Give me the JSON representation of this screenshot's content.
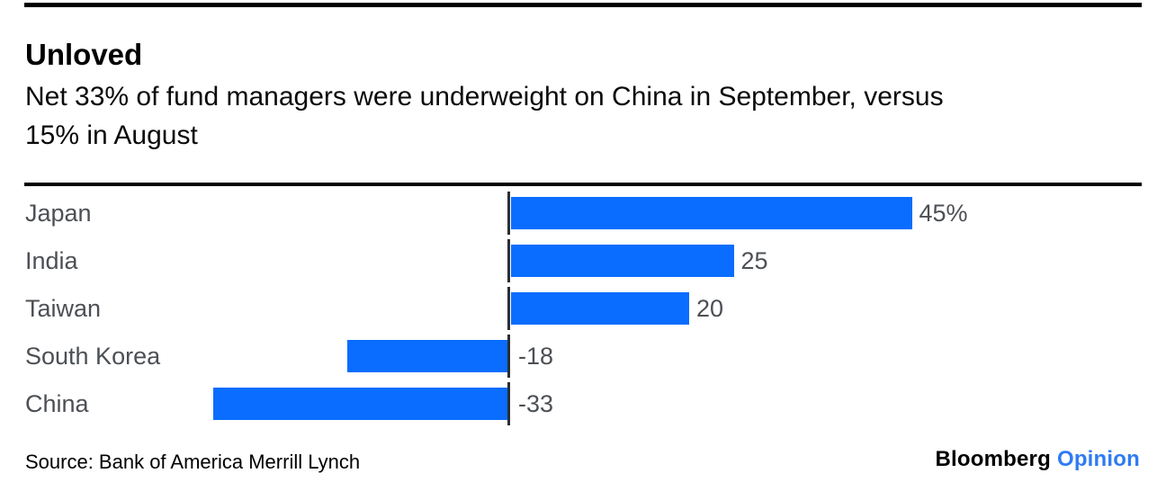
{
  "header": {
    "title": "Unloved",
    "subtitle": "Net 33% of fund managers were underweight on China in September, versus\n15% in August"
  },
  "chart_data": {
    "type": "bar",
    "orientation": "horizontal",
    "title": "Unloved",
    "subtitle": "Net 33% of fund managers were underweight on China in September, versus 15% in August",
    "categories": [
      "Japan",
      "India",
      "Taiwan",
      "South Korea",
      "China"
    ],
    "values": [
      45,
      25,
      20,
      -18,
      -33
    ],
    "value_labels": [
      "45%",
      "25",
      "20",
      "-18",
      "-33"
    ],
    "baseline": 0,
    "xlim": [
      -55,
      70
    ],
    "grid": false,
    "legend": false,
    "colors": {
      "bar": "#0a6dff",
      "labels": "#4c5055",
      "axis": "#2b2e33",
      "rules": "#000000"
    }
  },
  "footer": {
    "source": "Source: Bank of America Merrill Lynch",
    "brand": "Bloomberg",
    "brand_suffix": "Opinion",
    "brand_suffix_color": "#2f7bf3"
  }
}
